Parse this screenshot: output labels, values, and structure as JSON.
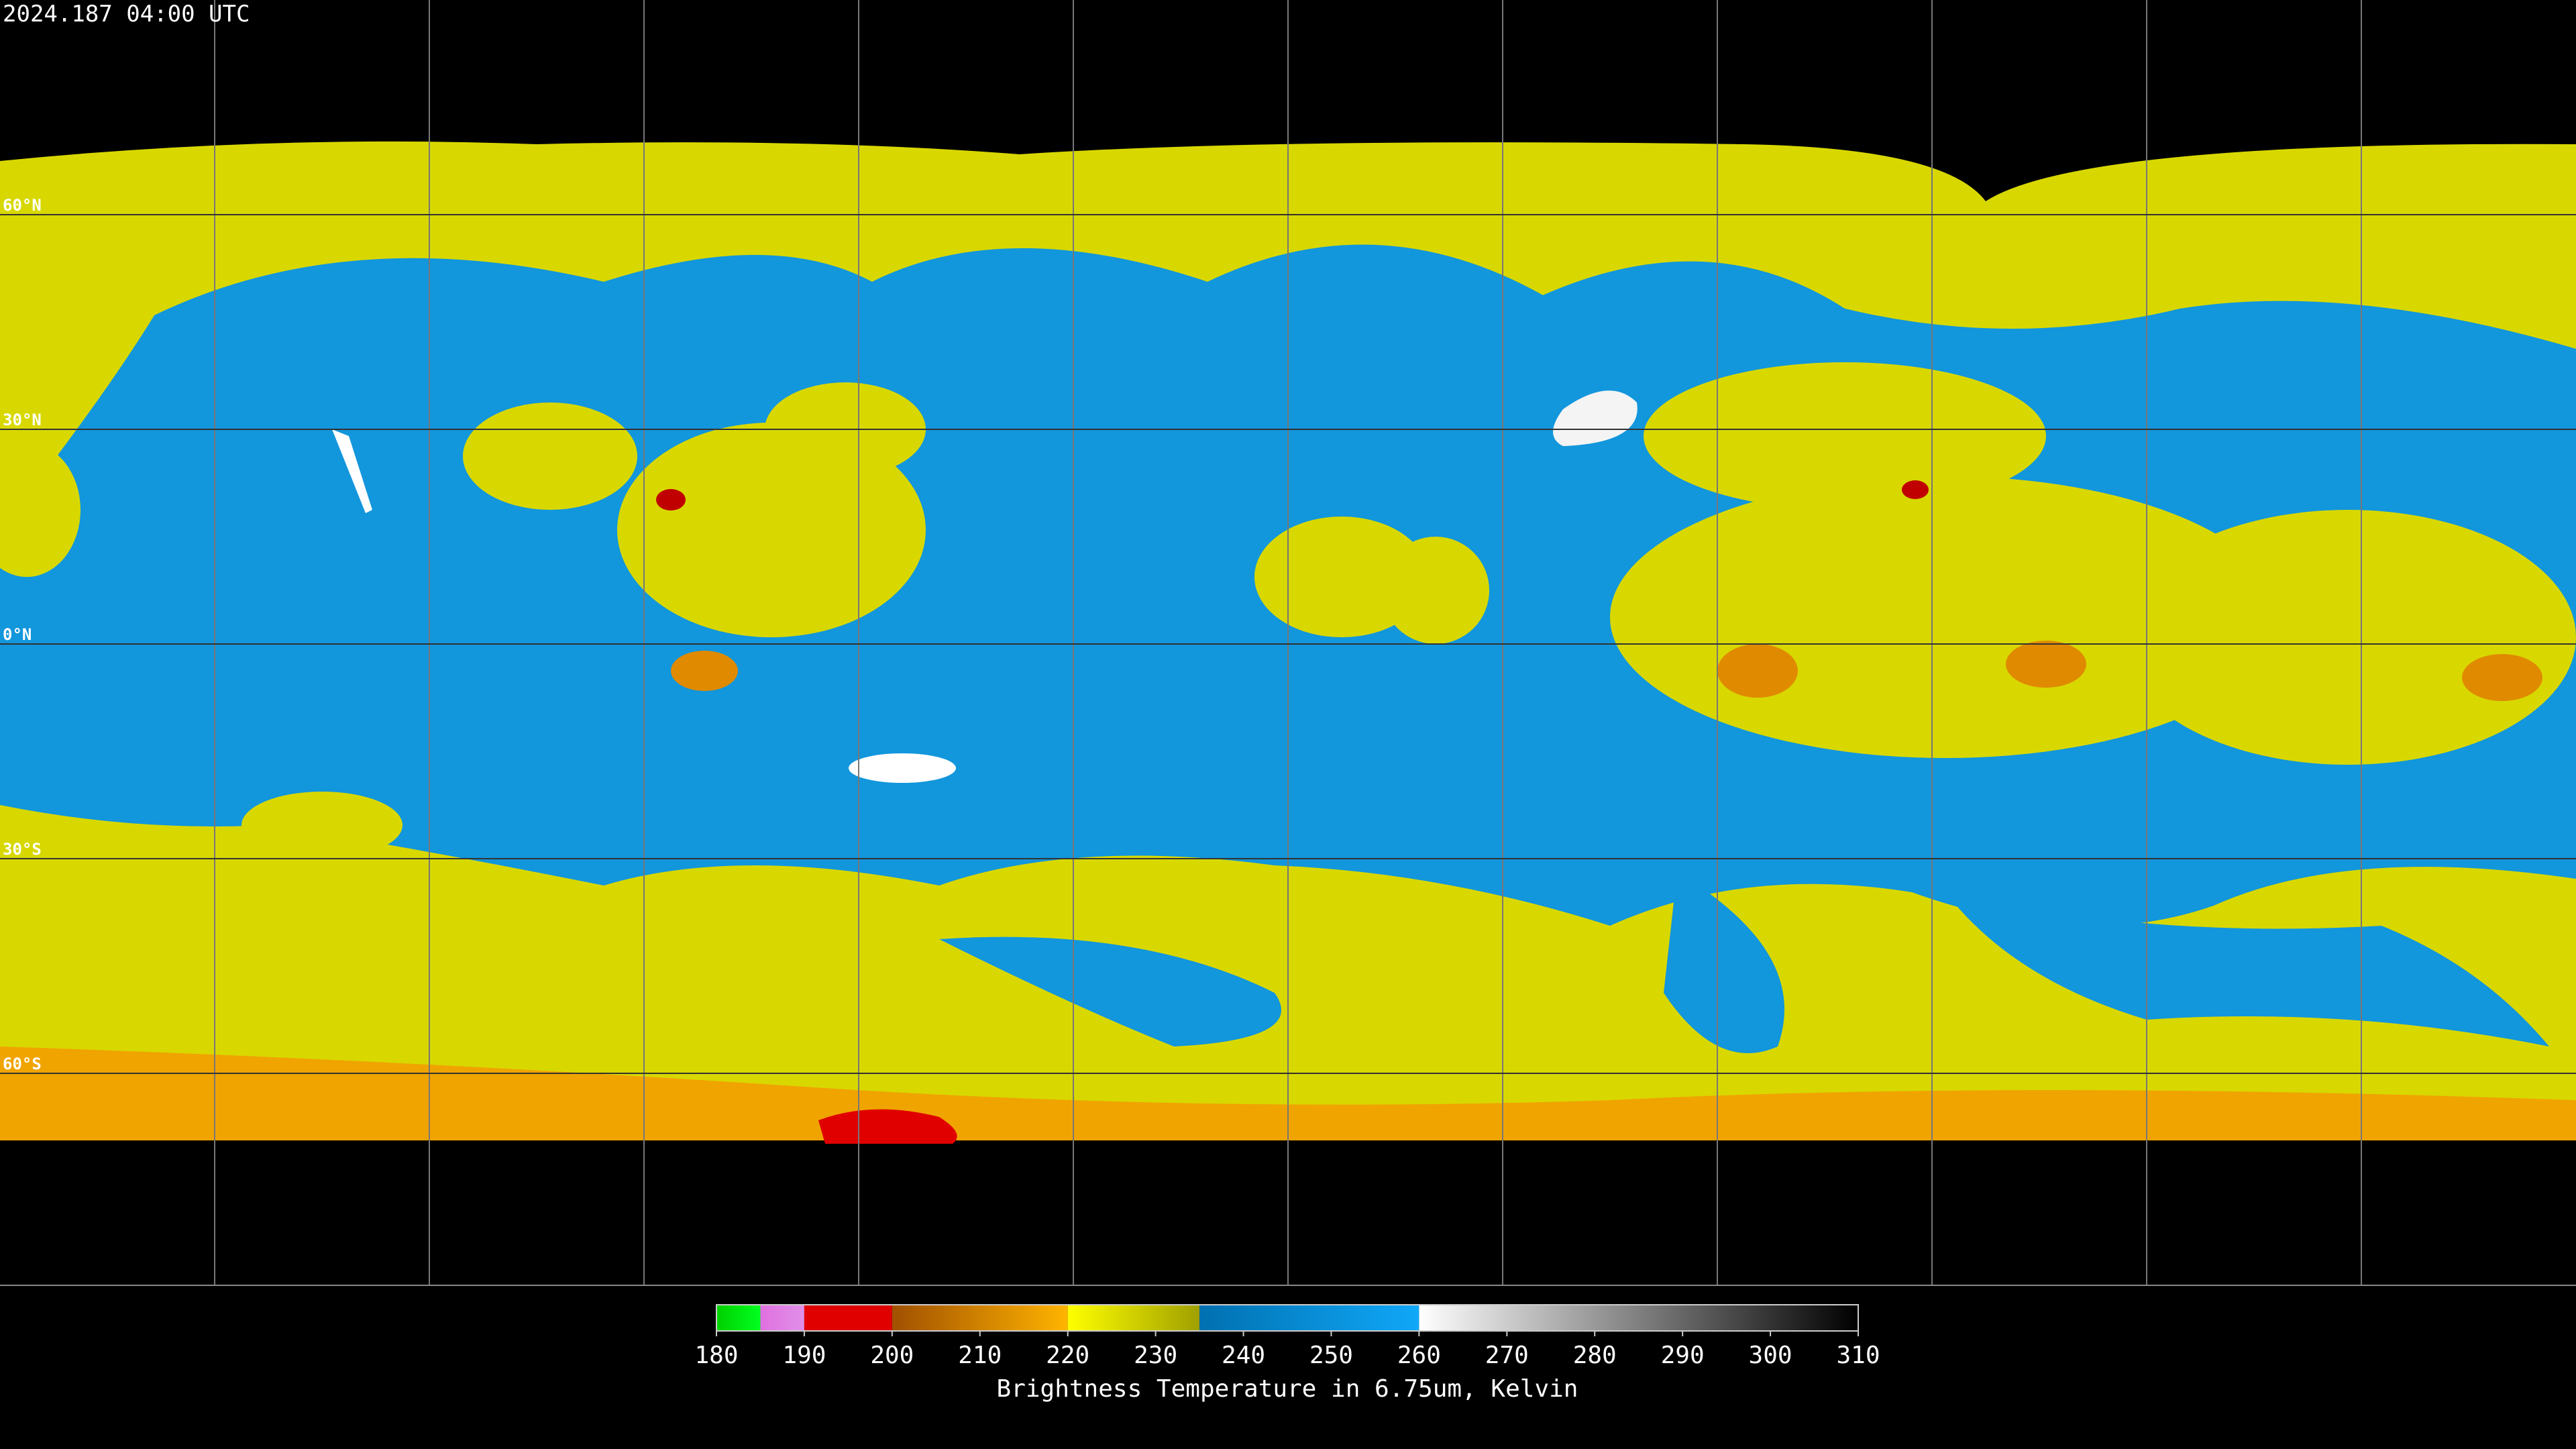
{
  "timestamp": "2024.187 04:00 UTC",
  "map": {
    "ylim": [
      90,
      -90
    ],
    "lat_lines": [
      {
        "value": 60,
        "label": "60°N"
      },
      {
        "value": 30,
        "label": "30°N"
      },
      {
        "value": 0,
        "label": "0°N"
      },
      {
        "value": -30,
        "label": "30°S"
      },
      {
        "value": -60,
        "label": "60°S"
      }
    ]
  },
  "colorbar": {
    "title": "Brightness Temperature in 6.75um, Kelvin",
    "range": [
      180,
      310
    ],
    "ticks": [
      180,
      190,
      200,
      210,
      220,
      230,
      240,
      250,
      260,
      270,
      280,
      290,
      300,
      310
    ],
    "segments": [
      {
        "from": 180,
        "to": 185,
        "colors": [
          "#00d000",
          "#00ff20"
        ]
      },
      {
        "from": 185,
        "to": 190,
        "colors": [
          "#e070e0",
          "#e090e8"
        ]
      },
      {
        "from": 190,
        "to": 200,
        "colors": [
          "#e00000",
          "#e00000"
        ]
      },
      {
        "from": 200,
        "to": 220,
        "colors": [
          "#a05000",
          "#ffb400"
        ]
      },
      {
        "from": 220,
        "to": 235,
        "colors": [
          "#ffff00",
          "#a0a000"
        ]
      },
      {
        "from": 235,
        "to": 260,
        "colors": [
          "#0070b0",
          "#10a8f8"
        ]
      },
      {
        "from": 260,
        "to": 310,
        "colors": [
          "#ffffff",
          "#000000"
        ]
      }
    ]
  }
}
